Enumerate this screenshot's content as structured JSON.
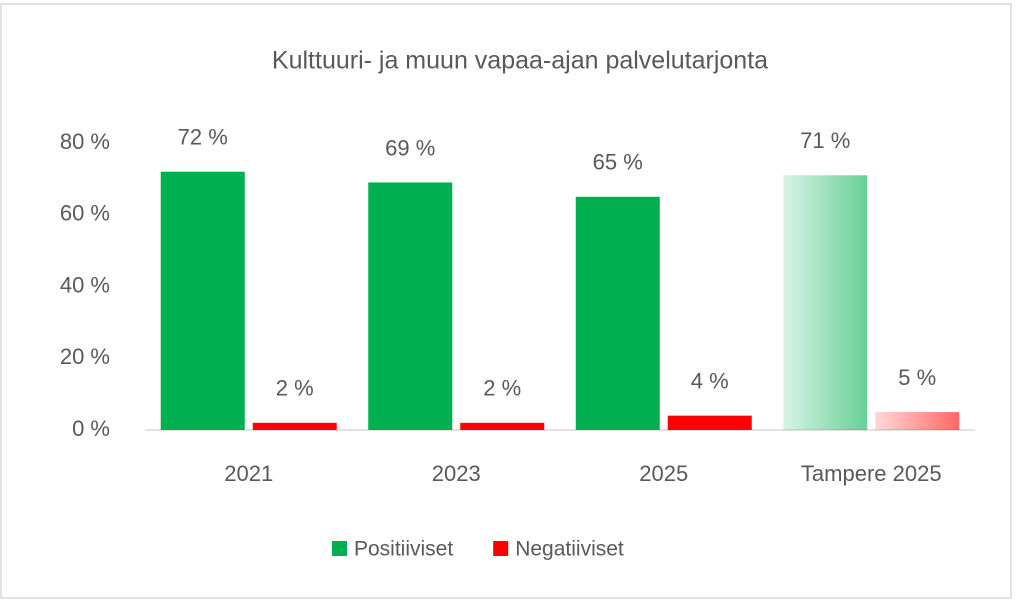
{
  "chart_data": {
    "type": "bar",
    "title": "Kulttuuri- ja muun vapaa-ajan palvelutarjonta",
    "categories": [
      "2021",
      "2023",
      "2025",
      "Tampere 2025"
    ],
    "series": [
      {
        "name": "Positiiviset",
        "color": "#00b050",
        "values": [
          72,
          69,
          65,
          71
        ],
        "value_labels": [
          "72 %",
          "69 %",
          "65 %",
          "71 %"
        ]
      },
      {
        "name": "Negatiiviset",
        "color": "#ff0000",
        "values": [
          2,
          2,
          4,
          5
        ],
        "value_labels": [
          "2 %",
          "2 %",
          "4 %",
          "5 %"
        ]
      }
    ],
    "ylim": [
      0,
      80
    ],
    "yticks": [
      {
        "value": 0,
        "label": "0 %"
      },
      {
        "value": 20,
        "label": "20 %"
      },
      {
        "value": 40,
        "label": "40 %"
      },
      {
        "value": 60,
        "label": "60 %"
      },
      {
        "value": 80,
        "label": "80 %"
      }
    ],
    "grid": false,
    "legend": "bottom"
  }
}
